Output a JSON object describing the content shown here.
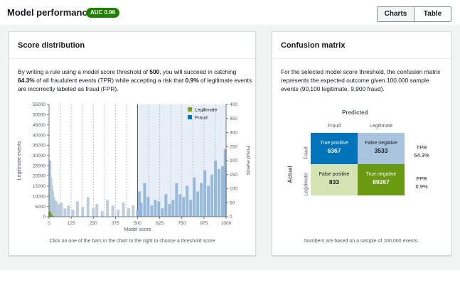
{
  "header": {
    "title": "Model performance",
    "auc_badge": "AUC 0.96",
    "tabs": [
      {
        "label": "Charts",
        "active": true
      },
      {
        "label": "Table",
        "active": false
      }
    ]
  },
  "score_panel": {
    "title": "Score distribution",
    "desc_1": "By writing a rule using a model score threshold of ",
    "threshold": "500",
    "desc_2": ", you will succeed in catching ",
    "tpr_pct": "64.3%",
    "desc_3": " of all fraudulent events (TPR) while accepting a risk that ",
    "fpr_pct": "0.9%",
    "desc_4": " of legitimate events are incorrectly labeled as fraud (FPR).",
    "footnote": "Click on one of the bars in the chart to the right to choose a threshold score"
  },
  "confusion_panel": {
    "title": "Confusion matrix",
    "desc": "For the selected model score threshold, the confusion matrix represents the expected outcome given 100,000 sample events (90,100 legitimate, 9,900 fraud).",
    "predicted_label": "Predicted",
    "actual_label": "Actual",
    "col_headers": [
      "Fraud",
      "Legitimate"
    ],
    "row_headers": [
      "Fraud",
      "Legitimate"
    ],
    "cells": {
      "tp": {
        "label": "True positive",
        "value": "6367"
      },
      "fn": {
        "label": "False negative",
        "value": "3533"
      },
      "fp": {
        "label": "False positive",
        "value": "833"
      },
      "tn": {
        "label": "True negative",
        "value": "89267"
      }
    },
    "rates": {
      "tpr_label": "TPR",
      "tpr_value": "64.3%",
      "fpr_label": "FPR",
      "fpr_value": "0.9%"
    },
    "footnote": "Numbers are based on a sample of 100,000 events."
  },
  "colors": {
    "legit": "#7aa116",
    "fraud": "#0073bb",
    "fraud_light": "#aac4df",
    "legit_light": "#d4e4b5",
    "threshold_shade": "#e7eef7",
    "accent_green": "#1d8102"
  },
  "chart_data": {
    "type": "bar",
    "xlabel": "Model score",
    "ylabel_left": "Legitimate events",
    "ylabel_right": "Fraud events",
    "xlim": [
      0,
      1000
    ],
    "x_ticks": [
      "0",
      "125",
      "250",
      "375",
      "500",
      "625",
      "750",
      "875",
      "1000"
    ],
    "ylim_left": [
      0,
      55000
    ],
    "y_ticks_left": [
      "0",
      "5000",
      "10000",
      "15000",
      "20000",
      "25000",
      "30000",
      "35000",
      "40000",
      "45000",
      "50000",
      "55000"
    ],
    "ylim_right": [
      0,
      400
    ],
    "y_ticks_right": [
      "0",
      "50",
      "100",
      "150",
      "200",
      "250",
      "300",
      "350",
      "400"
    ],
    "threshold": 500,
    "legend": [
      {
        "name": "Legitimate",
        "color": "#7aa116"
      },
      {
        "name": "Fraud",
        "color": "#0073bb"
      }
    ],
    "series": [
      {
        "name": "Legitimate",
        "x": [
          5,
          10,
          15,
          20
        ],
        "values": [
          2500,
          1200,
          600,
          300
        ]
      },
      {
        "name": "Fraud",
        "x": [
          5,
          10,
          15,
          20,
          25,
          30,
          40,
          55,
          70,
          90,
          110,
          135,
          160,
          190,
          220,
          250,
          270,
          300,
          330,
          360,
          390,
          420,
          450,
          475,
          500,
          510,
          520,
          540,
          560,
          580,
          600,
          620,
          640,
          660,
          680,
          700,
          720,
          740,
          760,
          780,
          800,
          820,
          840,
          860,
          880,
          900,
          920,
          940,
          960,
          980,
          995
        ],
        "values": [
          200,
          140,
          110,
          90,
          70,
          60,
          55,
          45,
          50,
          30,
          40,
          25,
          55,
          35,
          70,
          30,
          45,
          20,
          60,
          40,
          25,
          50,
          30,
          40,
          25,
          90,
          50,
          120,
          70,
          40,
          60,
          55,
          30,
          80,
          45,
          60,
          120,
          80,
          70,
          110,
          60,
          140,
          90,
          120,
          165,
          110,
          150,
          200,
          170,
          180,
          240
        ]
      }
    ]
  }
}
